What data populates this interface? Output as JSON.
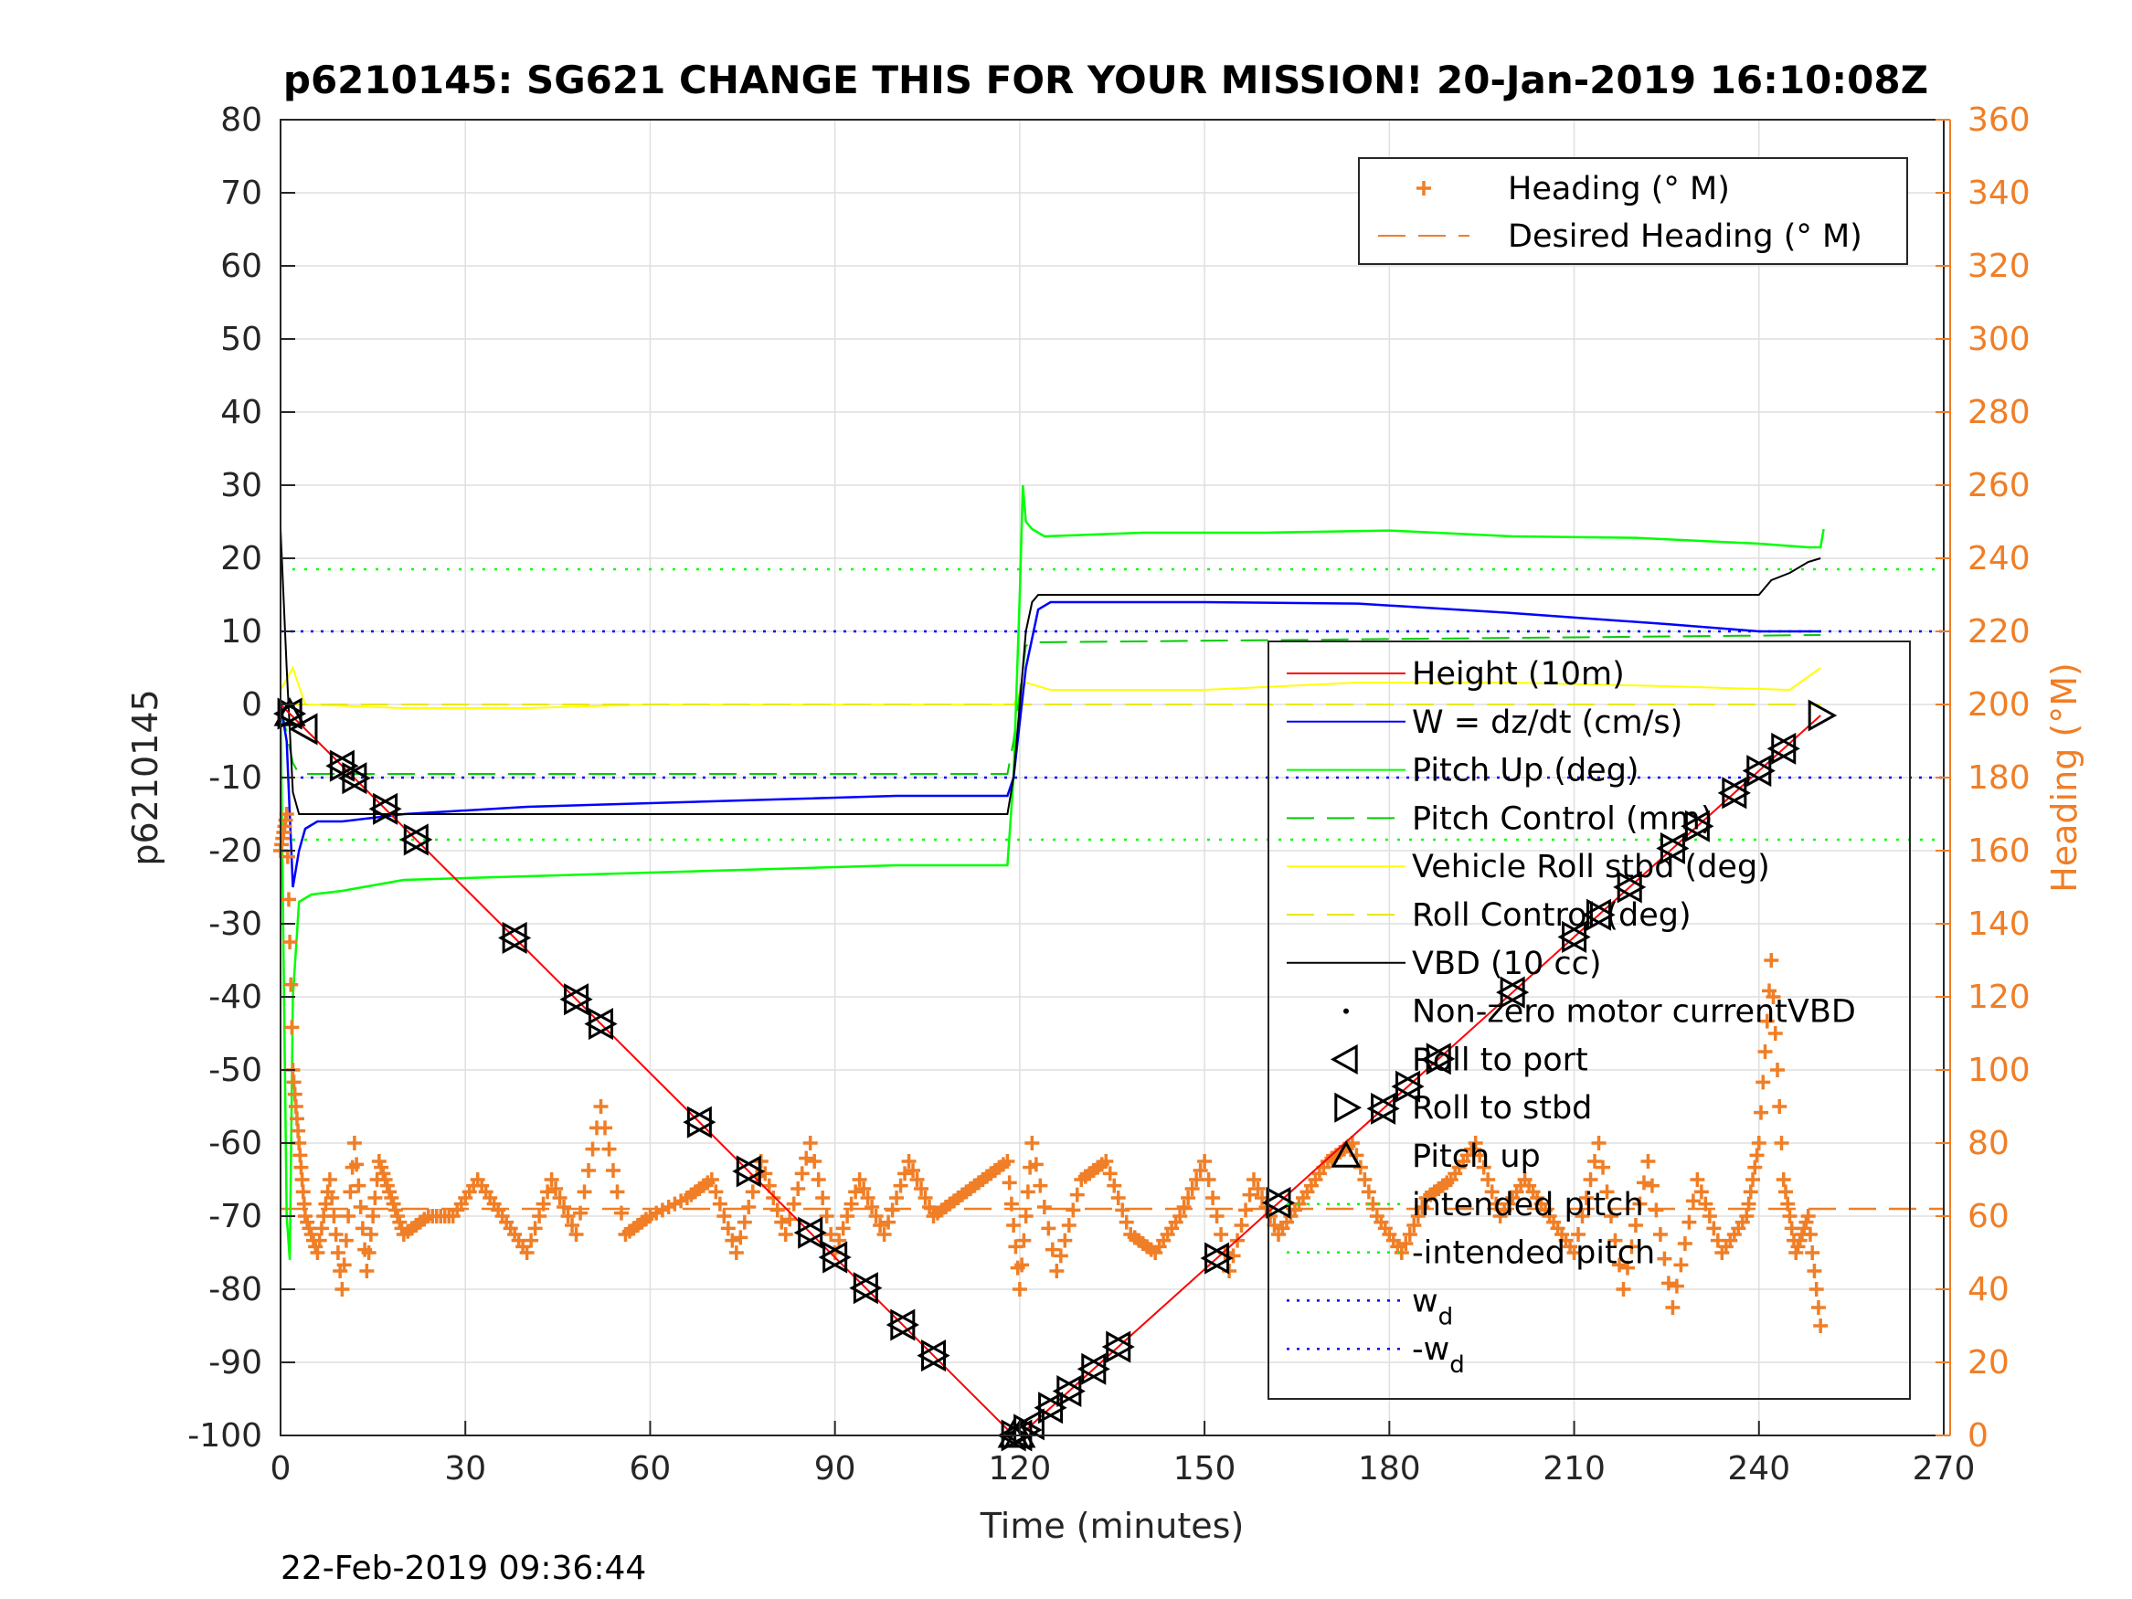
{
  "title": "p6210145: SG621 CHANGE THIS FOR YOUR MISSION! 20-Jan-2019 16:10:08Z",
  "timestamp": "22-Feb-2019 09:36:44",
  "chart_data": {
    "type": "line",
    "xlabel": "Time (minutes)",
    "ylabel_left": "p6210145",
    "ylabel_right": "Heading (°M)",
    "xlim": [
      0,
      270
    ],
    "ylim_left": [
      -100,
      80
    ],
    "ylim_right": [
      0,
      360
    ],
    "x_ticks": [
      0,
      30,
      60,
      90,
      120,
      150,
      180,
      210,
      240,
      270
    ],
    "y_ticks_left": [
      80,
      70,
      60,
      50,
      40,
      30,
      20,
      10,
      0,
      -10,
      -20,
      -30,
      -40,
      -50,
      -60,
      -70,
      -80,
      -90,
      -100
    ],
    "y_ticks_right": [
      360,
      340,
      320,
      300,
      280,
      260,
      240,
      220,
      200,
      180,
      160,
      140,
      120,
      100,
      80,
      60,
      40,
      20,
      0
    ],
    "grid": true,
    "colors": {
      "height": "#ff0000",
      "w": "#0000ff",
      "pitch": "#00ff00",
      "pitch_control": "#00cc00",
      "roll": "#ffff00",
      "roll_control": "#e8e800",
      "vbd": "#000000",
      "heading": "#f07e26",
      "intended_pitch": "#00ff00",
      "wd": "#0000ff"
    },
    "legend_right": {
      "placement": "top-right",
      "entries": [
        {
          "label": "Heading (° M)",
          "style": "plus",
          "color": "#f07e26"
        },
        {
          "label": "Desired Heading (° M)",
          "style": "dashed",
          "color": "#f07e26"
        }
      ]
    },
    "legend_left": {
      "placement": "lower-right",
      "entries": [
        {
          "label": "Height (10m)",
          "style": "solid",
          "color": "#ff0000"
        },
        {
          "label": "W = dz/dt (cm/s)",
          "style": "solid",
          "color": "#0000ff"
        },
        {
          "label": "Pitch Up (deg)",
          "style": "solid",
          "color": "#00ff00"
        },
        {
          "label": "Pitch Control (mm)",
          "style": "dashed",
          "color": "#00cc00"
        },
        {
          "label": "Vehicle Roll stbd (deg)",
          "style": "solid",
          "color": "#ffff00"
        },
        {
          "label": "Roll Control (deg)",
          "style": "dashed",
          "color": "#e8e800"
        },
        {
          "label": "VBD (10 cc)",
          "style": "solid",
          "color": "#000000"
        },
        {
          "label": "Non-zero motor currentVBD",
          "style": "dot",
          "color": "#000000"
        },
        {
          "label": "Roll to port",
          "style": "tri-left",
          "color": "#000000"
        },
        {
          "label": "Roll to stbd",
          "style": "tri-right",
          "color": "#000000"
        },
        {
          "label": "Pitch up",
          "style": "tri-up",
          "color": "#000000"
        },
        {
          "label": "intended pitch",
          "style": "dotted",
          "color": "#00ff00"
        },
        {
          "label": "-intended pitch",
          "style": "dotted",
          "color": "#00ff00"
        },
        {
          "label": "w",
          "sub": "d",
          "style": "dotted",
          "color": "#0000ff"
        },
        {
          "label": "-w",
          "sub": "d",
          "style": "dotted",
          "color": "#0000ff"
        }
      ]
    },
    "series": {
      "height": {
        "x": [
          0,
          119,
          120,
          250
        ],
        "y": [
          0,
          -100,
          -100,
          -1.5
        ]
      },
      "w": {
        "x": [
          0,
          1,
          2,
          3,
          4,
          6,
          10,
          20,
          40,
          60,
          80,
          100,
          118,
          119,
          121,
          123,
          125,
          150,
          175,
          200,
          225,
          240,
          250
        ],
        "y": [
          0,
          -5,
          -25,
          -20,
          -17,
          -16,
          -16,
          -15,
          -14,
          -13.5,
          -13,
          -12.5,
          -12.5,
          -10,
          5,
          13,
          14,
          14,
          13.8,
          12.5,
          11,
          10,
          10
        ]
      },
      "pitch": {
        "x": [
          0,
          1,
          1.5,
          2,
          3,
          5,
          10,
          20,
          40,
          60,
          80,
          100,
          118,
          119,
          120,
          120.5,
          121,
          122,
          124,
          140,
          160,
          180,
          200,
          220,
          240,
          248,
          250,
          250.5
        ],
        "y": [
          0,
          -70,
          -76,
          -40,
          -27,
          -26,
          -25.5,
          -24,
          -23.5,
          -23,
          -22.5,
          -22,
          -22,
          -10,
          15,
          30,
          25,
          24,
          23,
          23.5,
          23.5,
          23.8,
          23,
          22.8,
          22,
          21.5,
          21.5,
          24
        ]
      },
      "pitch_control": {
        "x": [
          0,
          2,
          3,
          118,
          119,
          121,
          122,
          250
        ],
        "y": [
          0,
          -8,
          -9.5,
          -9.5,
          -5,
          8,
          8.5,
          9.5
        ]
      },
      "roll": {
        "x": [
          0,
          2,
          4,
          20,
          40,
          60,
          80,
          100,
          119,
          121,
          125,
          150,
          175,
          200,
          225,
          245,
          250
        ],
        "y": [
          2,
          5,
          0,
          -0.5,
          -0.5,
          0,
          0,
          0,
          0,
          3,
          2,
          2,
          3,
          3,
          2.5,
          2,
          5
        ]
      },
      "roll_control": {
        "x": [
          0,
          250
        ],
        "y": [
          0,
          0
        ]
      },
      "vbd": {
        "x": [
          0,
          1,
          2,
          3,
          118,
          119,
          120,
          121,
          122,
          123,
          200,
          240,
          242,
          245,
          248,
          250
        ],
        "y": [
          24,
          5,
          -12,
          -15,
          -15,
          -10,
          0,
          10,
          14,
          15,
          15,
          15,
          17,
          18,
          19.5,
          20
        ]
      },
      "heading": {
        "x": [
          0,
          1,
          2,
          3,
          4,
          6,
          8,
          10,
          12,
          14,
          16,
          18,
          20,
          24,
          28,
          32,
          36,
          40,
          44,
          48,
          52,
          56,
          60,
          66,
          70,
          74,
          78,
          82,
          86,
          90,
          94,
          98,
          102,
          106,
          110,
          114,
          118,
          120,
          122,
          126,
          130,
          134,
          138,
          142,
          146,
          150,
          154,
          158,
          162,
          166,
          170,
          174,
          178,
          182,
          186,
          190,
          194,
          198,
          202,
          206,
          210,
          214,
          218,
          222,
          226,
          230,
          234,
          238,
          240,
          242,
          244,
          246,
          248,
          250
        ],
        "y": [
          160,
          170,
          100,
          80,
          60,
          50,
          70,
          40,
          80,
          45,
          75,
          65,
          55,
          60,
          60,
          70,
          60,
          50,
          70,
          55,
          90,
          55,
          60,
          65,
          70,
          50,
          75,
          55,
          80,
          50,
          70,
          55,
          75,
          60,
          65,
          70,
          75,
          40,
          80,
          45,
          70,
          75,
          55,
          50,
          60,
          75,
          45,
          70,
          55,
          65,
          75,
          80,
          60,
          50,
          65,
          70,
          80,
          60,
          70,
          60,
          50,
          80,
          40,
          75,
          35,
          70,
          50,
          60,
          80,
          130,
          70,
          50,
          60,
          30
        ]
      },
      "desired_heading": {
        "value": 62
      },
      "intended_pitch": {
        "value": 18.5
      },
      "neg_intended_pitch": {
        "value": -18.5
      },
      "wd": {
        "value": 10
      },
      "neg_wd": {
        "value": -10
      }
    },
    "markers": {
      "roll_to_port": [
        1.5,
        4,
        10,
        12,
        17,
        22,
        38,
        48,
        52,
        68,
        76,
        86,
        90,
        95,
        101,
        106,
        119,
        120,
        122,
        125,
        128,
        132,
        136,
        152,
        162,
        179,
        183,
        188,
        200,
        210,
        214,
        219,
        226,
        230,
        236,
        240,
        244
      ],
      "roll_to_stbd": [
        1.5,
        10,
        12,
        17,
        22,
        38,
        48,
        52,
        68,
        76,
        86,
        90,
        95,
        101,
        106,
        119,
        121,
        125,
        128,
        132,
        136,
        152,
        162,
        179,
        183,
        188,
        200,
        210,
        214,
        219,
        226,
        230,
        236,
        240,
        244,
        250
      ],
      "pitch_up": [
        1.5,
        119,
        120
      ]
    }
  }
}
